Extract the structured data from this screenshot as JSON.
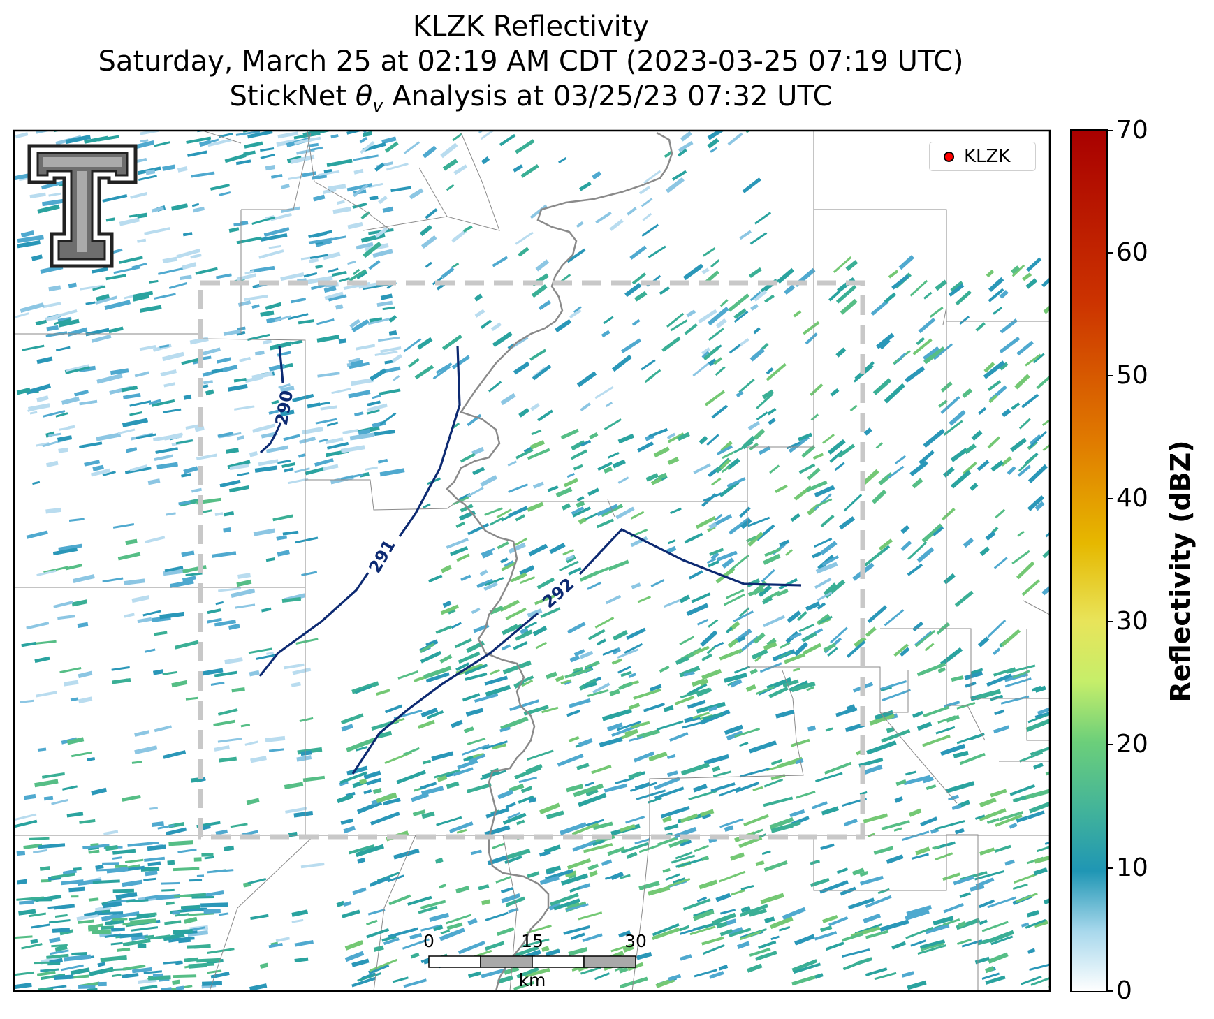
{
  "title": {
    "line1": "KLZK Reflectivity",
    "line2": "Saturday, March 25 at 02:19 AM CDT (2023-03-25 07:19 UTC)",
    "line3_prefix": "StickNet ",
    "line3_symbol": "θ",
    "line3_sub": "v",
    "line3_suffix": " Analysis at 03/25/23 07:32 UTC"
  },
  "legend": {
    "label": "KLZK",
    "marker_color": "#ff0000"
  },
  "colorbar": {
    "label": "Reflectivity (dBZ)",
    "min": 0,
    "max": 70,
    "ticks": [
      "0",
      "10",
      "20",
      "30",
      "40",
      "50",
      "60",
      "70"
    ],
    "colors": [
      "#ffffff",
      "#1f96b4",
      "#6ccf7a",
      "#d7f55e",
      "#e6b800",
      "#e06a00",
      "#c41c00",
      "#a80000"
    ]
  },
  "contours": [
    {
      "label": "290"
    },
    {
      "label": "291"
    },
    {
      "label": "292"
    }
  ],
  "contour_color": "#0d2a72",
  "scale_bar": {
    "ticks": [
      "0",
      "15",
      "30"
    ],
    "unit": "km"
  },
  "logo": {
    "name": "Texas Tech Double T"
  }
}
